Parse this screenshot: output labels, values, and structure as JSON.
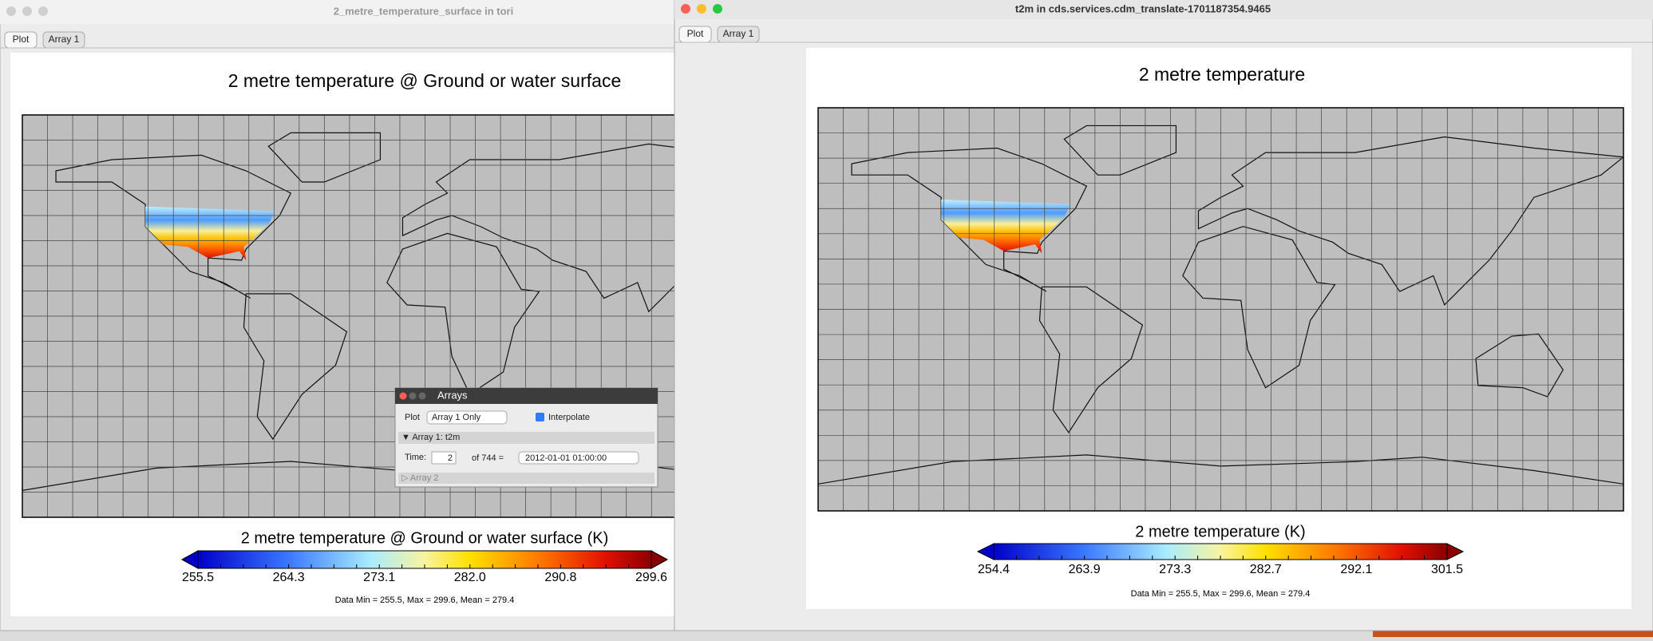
{
  "windows": [
    {
      "title": "2_metre_temperature_surface in tori",
      "tabs": [
        "Plot",
        "Array 1"
      ],
      "plot_title": "2 metre temperature @ Ground or water surface",
      "colorbar_label": "2 metre temperature @ Ground or water surface (K)",
      "colorbar_ticks": [
        "255.5",
        "264.3",
        "273.1",
        "282.0",
        "290.8",
        "299.6"
      ],
      "stats": "Data Min = 255.5, Max = 299.6, Mean = 279.4"
    },
    {
      "title": "t2m in cds.services.cdm_translate-1701187354.9465",
      "tabs": [
        "Plot",
        "Array 1"
      ],
      "plot_title": "2 metre temperature",
      "colorbar_label": "2 metre temperature (K)",
      "colorbar_ticks": [
        "254.4",
        "263.9",
        "273.3",
        "282.7",
        "292.1",
        "301.5"
      ],
      "stats": "Data Min = 255.5, Max = 299.6, Mean = 279.4"
    }
  ],
  "arrays_dialog": {
    "title": "Arrays",
    "plot_label": "Plot",
    "plot_mode": "Array 1 Only",
    "interpolate": "Interpolate",
    "array1": "▼ Array 1: t2m",
    "time_label": "Time:",
    "time_value": "2",
    "time_of": "of 744 =",
    "time_date": "2012-01-01 01:00:00",
    "array2": "▷ Array 2"
  }
}
